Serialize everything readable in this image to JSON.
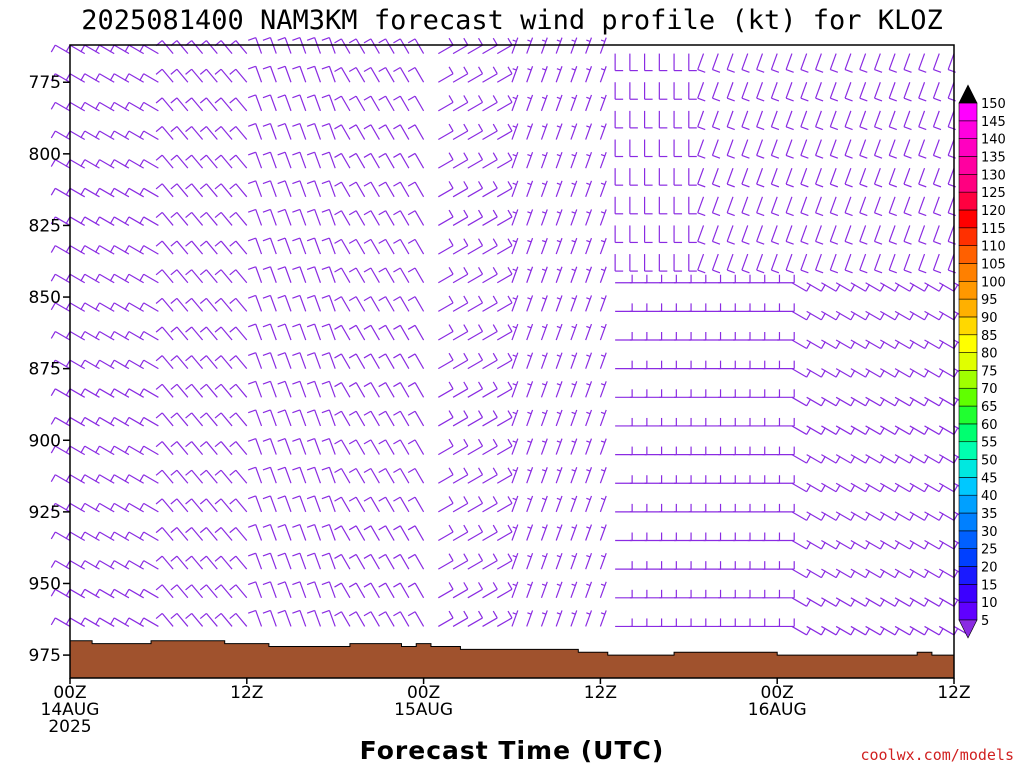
{
  "title": "2025081400 NAM3KM forecast wind profile (kt) for KLOZ",
  "credit": "coolwx.com/models",
  "chart_data": {
    "type": "wind barb time-height cross-section",
    "title": "2025081400 NAM3KM forecast wind profile (kt) for KLOZ",
    "model": "NAM3KM",
    "init": "2025081400",
    "station": "KLOZ",
    "units": "kt",
    "xlabel": "Forecast Time (UTC)",
    "ylabel": "",
    "x_ticks": [
      {
        "hour": 0,
        "line1": "00Z",
        "line2": "14AUG",
        "line3": "2025"
      },
      {
        "hour": 12,
        "line1": "12Z",
        "line2": "",
        "line3": ""
      },
      {
        "hour": 24,
        "line1": "00Z",
        "line2": "15AUG",
        "line3": ""
      },
      {
        "hour": 36,
        "line1": "12Z",
        "line2": "",
        "line3": ""
      },
      {
        "hour": 48,
        "line1": "00Z",
        "line2": "16AUG",
        "line3": ""
      },
      {
        "hour": 60,
        "line1": "12Z",
        "line2": "",
        "line3": ""
      }
    ],
    "xlim": [
      0,
      60
    ],
    "y_ticks": [
      775,
      800,
      825,
      850,
      875,
      900,
      925,
      950,
      975
    ],
    "ylim": [
      983,
      762
    ],
    "colorbar": {
      "levels": [
        5,
        10,
        15,
        20,
        25,
        30,
        35,
        40,
        45,
        50,
        55,
        60,
        65,
        70,
        75,
        80,
        85,
        90,
        95,
        100,
        105,
        110,
        115,
        120,
        125,
        130,
        135,
        140,
        145,
        150
      ],
      "colors": [
        "#8a2be2",
        "#6000ff",
        "#3c00ff",
        "#1a1aff",
        "#0040ff",
        "#0060ff",
        "#0080ff",
        "#00a0ff",
        "#00c8ff",
        "#00e8e0",
        "#00ffb0",
        "#00ff70",
        "#20ff30",
        "#60ff00",
        "#a0ff00",
        "#e0ff00",
        "#ffff00",
        "#ffd800",
        "#ffb000",
        "#ff9800",
        "#ff8000",
        "#ff6000",
        "#ff3000",
        "#ff0000",
        "#ff0040",
        "#ff0080",
        "#ff00a0",
        "#ff00c0",
        "#ff00e0",
        "#ff00ff"
      ],
      "top_arrow_color": "#000000",
      "bottom_arrow_color": "#8a2be2"
    },
    "barb_color": "#8a2be2",
    "terrain_color": "#a0522d",
    "terrain_surface_hpa": [
      {
        "hour": 0,
        "p": 970
      },
      {
        "hour": 1.5,
        "p": 971
      },
      {
        "hour": 4,
        "p": 971
      },
      {
        "hour": 5.5,
        "p": 970
      },
      {
        "hour": 10.5,
        "p": 971
      },
      {
        "hour": 13.5,
        "p": 972
      },
      {
        "hour": 19,
        "p": 971
      },
      {
        "hour": 22.5,
        "p": 972
      },
      {
        "hour": 23.5,
        "p": 971
      },
      {
        "hour": 24.5,
        "p": 972
      },
      {
        "hour": 26.5,
        "p": 973
      },
      {
        "hour": 34.5,
        "p": 974
      },
      {
        "hour": 36.5,
        "p": 975
      },
      {
        "hour": 41,
        "p": 974
      },
      {
        "hour": 48,
        "p": 975
      },
      {
        "hour": 57.5,
        "p": 974
      },
      {
        "hour": 58.5,
        "p": 975
      },
      {
        "hour": 60,
        "p": 975
      }
    ],
    "barb_hours": [
      0,
      1,
      2,
      3,
      4,
      5,
      6,
      7,
      8,
      9,
      10,
      11,
      12,
      13,
      14,
      15,
      16,
      17,
      18,
      19,
      20,
      21,
      22,
      23,
      24,
      25,
      26,
      27,
      28,
      29,
      30,
      31,
      32,
      33,
      34,
      35,
      36,
      37,
      38,
      39,
      40,
      41,
      42,
      43,
      44,
      45,
      46,
      47,
      48,
      49,
      50,
      51,
      52,
      53,
      54,
      55,
      56,
      57,
      58,
      59,
      60
    ],
    "barb_levels_hpa": [
      765,
      775,
      785,
      795,
      805,
      815,
      825,
      835,
      845,
      855,
      865,
      875,
      885,
      895,
      905,
      915,
      925,
      935,
      945,
      955,
      965
    ],
    "wind_regimes": [
      {
        "hours": [
          0,
          6
        ],
        "levels": [
          765,
          965
        ],
        "dir_deg": 300,
        "speed_kt": 10
      },
      {
        "hours": [
          7,
          12
        ],
        "levels": [
          765,
          965
        ],
        "dir_deg": 320,
        "speed_kt": 10
      },
      {
        "hours": [
          13,
          18
        ],
        "levels": [
          765,
          965
        ],
        "dir_deg": 340,
        "speed_kt": 10
      },
      {
        "hours": [
          19,
          24
        ],
        "levels": [
          765,
          965
        ],
        "dir_deg": 330,
        "speed_kt": 10
      },
      {
        "hours": [
          25,
          29
        ],
        "levels": [
          765,
          965
        ],
        "dir_deg": 60,
        "speed_kt": 10
      },
      {
        "hours": [
          30,
          36
        ],
        "levels": [
          765,
          965
        ],
        "dir_deg": 20,
        "speed_kt": 5
      },
      {
        "hours": [
          37,
          42
        ],
        "levels": [
          765,
          835
        ],
        "dir_deg": 180,
        "speed_kt": 10
      },
      {
        "hours": [
          37,
          48
        ],
        "levels": [
          845,
          965
        ],
        "dir_deg": 90,
        "speed_kt": 10
      },
      {
        "hours": [
          43,
          60
        ],
        "levels": [
          765,
          835
        ],
        "dir_deg": 200,
        "speed_kt": 10
      },
      {
        "hours": [
          49,
          60
        ],
        "levels": [
          845,
          965
        ],
        "dir_deg": 120,
        "speed_kt": 10
      }
    ]
  }
}
